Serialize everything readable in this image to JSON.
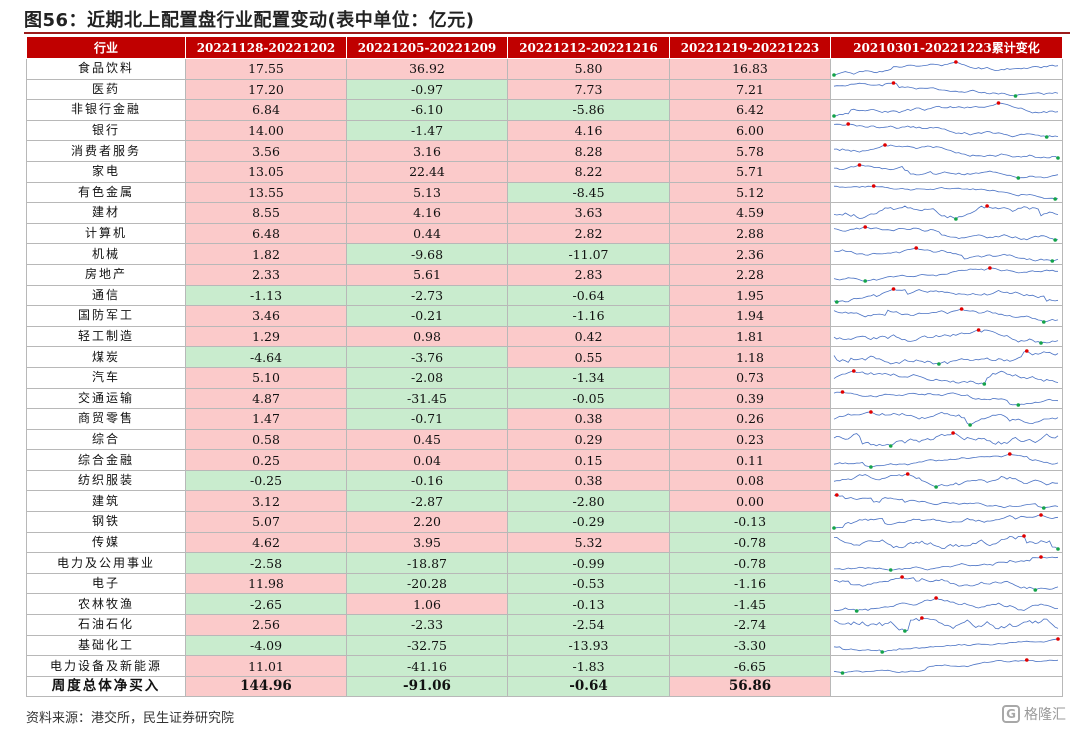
{
  "title": "图56：近期北上配置盘行业配置变动(表中单位：亿元)",
  "source": "资料来源：港交所，民生证券研究院",
  "watermark": "格隆汇",
  "colors": {
    "header_bg": "#c00000",
    "positive_bg": "#fbcaca",
    "negative_bg": "#c9ecce",
    "line": "#4a72c4",
    "max_dot": "#e00000",
    "min_dot": "#14a34a"
  },
  "headers": [
    "行业",
    "20221128-20221202",
    "20221205-20221209",
    "20221212-20221216",
    "20221219-20221223",
    "20210301-20221223累计变化"
  ],
  "rows": [
    {
      "industry": "食品饮料",
      "values": [
        "17.55",
        "36.92",
        "5.80",
        "16.83"
      ]
    },
    {
      "industry": "医药",
      "values": [
        "17.20",
        "-0.97",
        "7.73",
        "7.21"
      ]
    },
    {
      "industry": "非银行金融",
      "values": [
        "6.84",
        "-6.10",
        "-5.86",
        "6.42"
      ]
    },
    {
      "industry": "银行",
      "values": [
        "14.00",
        "-1.47",
        "4.16",
        "6.00"
      ]
    },
    {
      "industry": "消费者服务",
      "values": [
        "3.56",
        "3.16",
        "8.28",
        "5.78"
      ]
    },
    {
      "industry": "家电",
      "values": [
        "13.05",
        "22.44",
        "8.22",
        "5.71"
      ]
    },
    {
      "industry": "有色金属",
      "values": [
        "13.55",
        "5.13",
        "-8.45",
        "5.12"
      ]
    },
    {
      "industry": "建材",
      "values": [
        "8.55",
        "4.16",
        "3.63",
        "4.59"
      ]
    },
    {
      "industry": "计算机",
      "values": [
        "6.48",
        "0.44",
        "2.82",
        "2.88"
      ]
    },
    {
      "industry": "机械",
      "values": [
        "1.82",
        "-9.68",
        "-11.07",
        "2.36"
      ]
    },
    {
      "industry": "房地产",
      "values": [
        "2.33",
        "5.61",
        "2.83",
        "2.28"
      ]
    },
    {
      "industry": "通信",
      "values": [
        "-1.13",
        "-2.73",
        "-0.64",
        "1.95"
      ]
    },
    {
      "industry": "国防军工",
      "values": [
        "3.46",
        "-0.21",
        "-1.16",
        "1.94"
      ]
    },
    {
      "industry": "轻工制造",
      "values": [
        "1.29",
        "0.98",
        "0.42",
        "1.81"
      ]
    },
    {
      "industry": "煤炭",
      "values": [
        "-4.64",
        "-3.76",
        "0.55",
        "1.18"
      ]
    },
    {
      "industry": "汽车",
      "values": [
        "5.10",
        "-2.08",
        "-1.34",
        "0.73"
      ]
    },
    {
      "industry": "交通运输",
      "values": [
        "4.87",
        "-31.45",
        "-0.05",
        "0.39"
      ]
    },
    {
      "industry": "商贸零售",
      "values": [
        "1.47",
        "-0.71",
        "0.38",
        "0.26"
      ]
    },
    {
      "industry": "综合",
      "values": [
        "0.58",
        "0.45",
        "0.29",
        "0.23"
      ]
    },
    {
      "industry": "综合金融",
      "values": [
        "0.25",
        "0.04",
        "0.15",
        "0.11"
      ]
    },
    {
      "industry": "纺织服装",
      "values": [
        "-0.25",
        "-0.16",
        "0.38",
        "0.08"
      ]
    },
    {
      "industry": "建筑",
      "values": [
        "3.12",
        "-2.87",
        "-2.80",
        "0.00"
      ]
    },
    {
      "industry": "钢铁",
      "values": [
        "5.07",
        "2.20",
        "-0.29",
        "-0.13"
      ]
    },
    {
      "industry": "传媒",
      "values": [
        "4.62",
        "3.95",
        "5.32",
        "-0.78"
      ]
    },
    {
      "industry": "电力及公用事业",
      "values": [
        "-2.58",
        "-18.87",
        "-0.99",
        "-0.78"
      ]
    },
    {
      "industry": "电子",
      "values": [
        "11.98",
        "-20.28",
        "-0.53",
        "-1.16"
      ]
    },
    {
      "industry": "农林牧渔",
      "values": [
        "-2.65",
        "1.06",
        "-0.13",
        "-1.45"
      ]
    },
    {
      "industry": "石油石化",
      "values": [
        "2.56",
        "-2.33",
        "-2.54",
        "-2.74"
      ]
    },
    {
      "industry": "基础化工",
      "values": [
        "-4.09",
        "-32.75",
        "-13.93",
        "-3.30"
      ]
    },
    {
      "industry": "电力设备及新能源",
      "values": [
        "11.01",
        "-41.16",
        "-1.83",
        "-6.65"
      ]
    }
  ],
  "total": {
    "industry": "周度总体净买入",
    "values": [
      "144.96",
      "-91.06",
      "-0.64",
      "56.86"
    ]
  }
}
